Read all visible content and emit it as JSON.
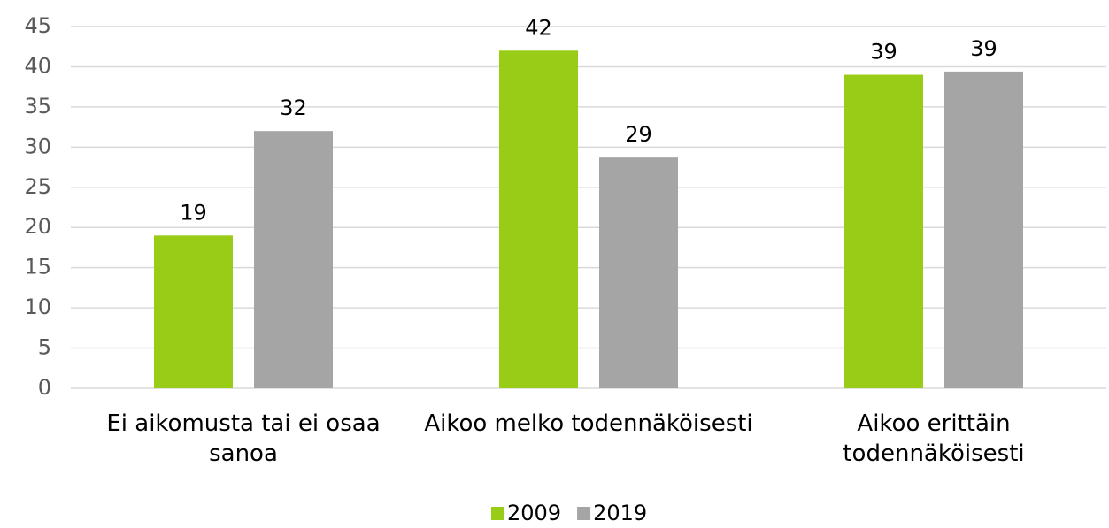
{
  "chart_data": {
    "type": "bar",
    "categories": [
      "Ei aikomusta tai ei osaa sanoa",
      "Aikoo melko todennäköisesti",
      "Aikoo erittäin todennäköisesti"
    ],
    "series": [
      {
        "name": "2009",
        "color": "#99cc16",
        "values": [
          19,
          42,
          39
        ]
      },
      {
        "name": "2019",
        "color": "#a5a5a5",
        "values": [
          32,
          28.7,
          39.4
        ],
        "value_labels": [
          "32",
          "29",
          "39"
        ]
      }
    ],
    "ylim": [
      0,
      45
    ],
    "yticks": [
      0,
      5,
      10,
      15,
      20,
      25,
      30,
      35,
      40,
      45
    ],
    "grid": true,
    "legend": "bottom"
  }
}
